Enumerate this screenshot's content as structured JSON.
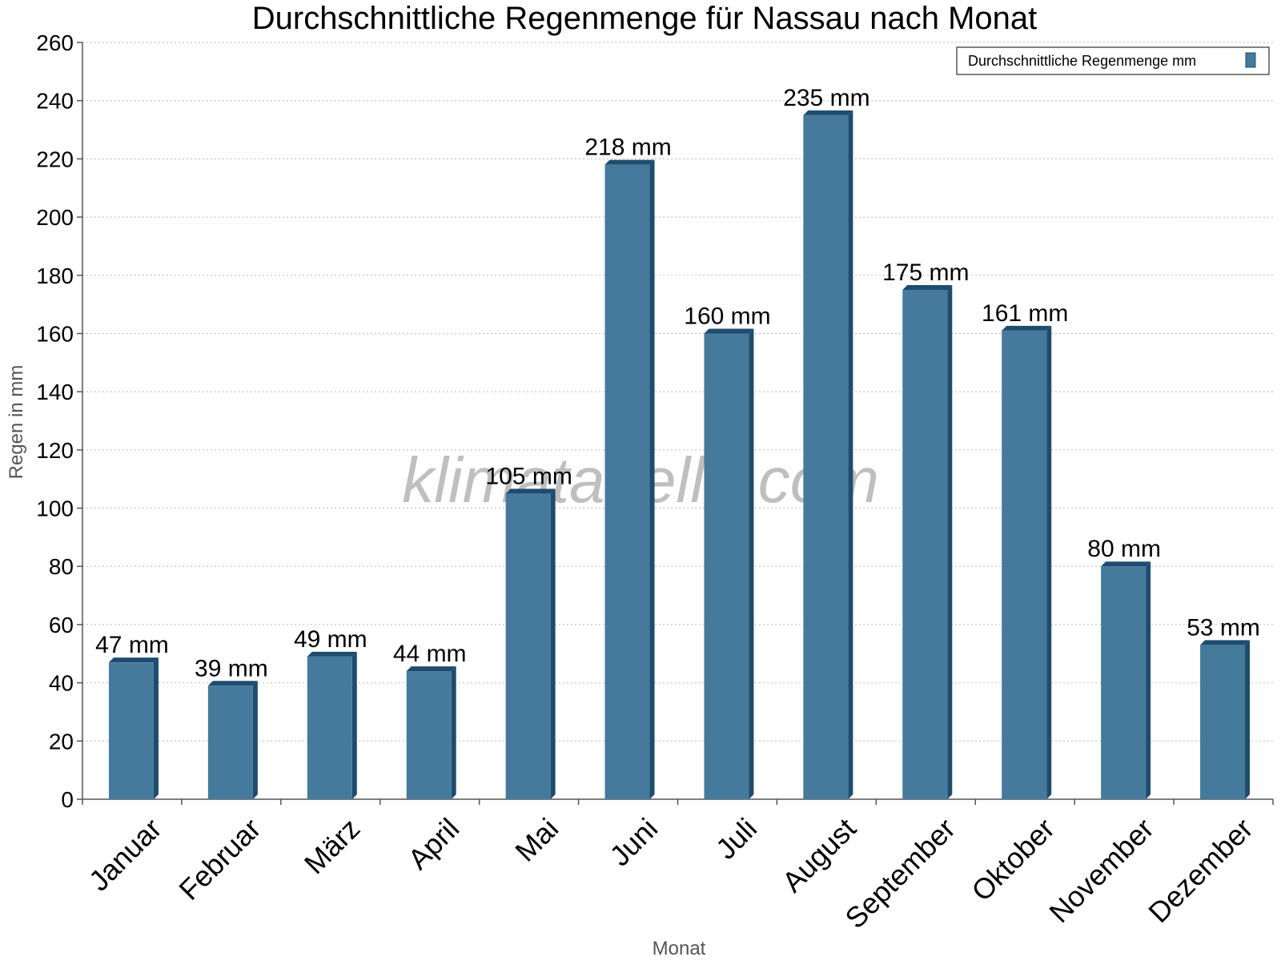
{
  "chart_data": {
    "type": "bar",
    "title": "Durchschnittliche Regenmenge für Nassau nach Monat",
    "xlabel": "Monat",
    "ylabel": "Regen in mm",
    "categories": [
      "Januar",
      "Februar",
      "März",
      "April",
      "Mai",
      "Juni",
      "Juli",
      "August",
      "September",
      "Oktober",
      "November",
      "Dezember"
    ],
    "series": [
      {
        "name": "Durchschnittliche Regenmenge mm",
        "values": [
          47,
          39,
          49,
          44,
          105,
          218,
          160,
          235,
          175,
          161,
          80,
          53
        ],
        "labels": [
          "47 mm",
          "39 mm",
          "49 mm",
          "44 mm",
          "105 mm",
          "218 mm",
          "160 mm",
          "235 mm",
          "175 mm",
          "161 mm",
          "80 mm",
          "53 mm"
        ]
      }
    ],
    "ylim": [
      0,
      260
    ],
    "yticks": [
      0,
      20,
      40,
      60,
      80,
      100,
      120,
      140,
      160,
      180,
      200,
      220,
      240,
      260
    ],
    "grid": true,
    "legend_position": "top-right",
    "watermark": "klimatabelle.com",
    "colors": {
      "bar_front": "#457a9d",
      "bar_side": "#1e4c6e",
      "bar_top": "#1e4c6e",
      "grid": "#bbbbbb",
      "axis": "#555555"
    }
  }
}
